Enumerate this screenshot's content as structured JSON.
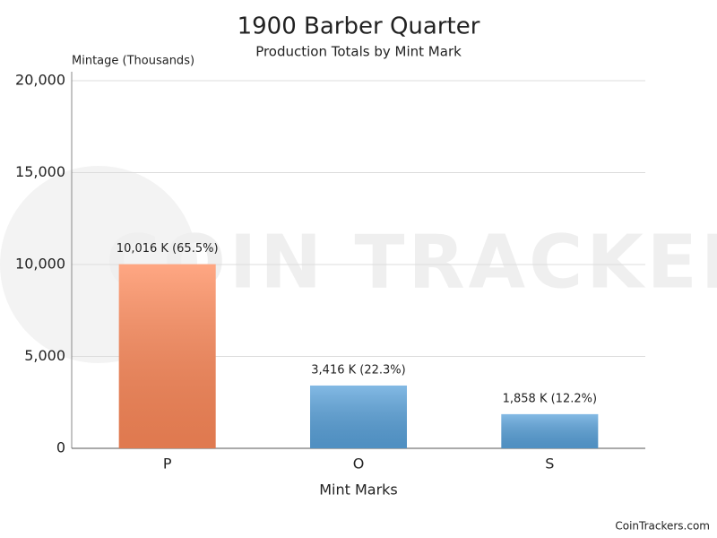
{
  "chart_data": {
    "type": "bar",
    "title": "1900 Barber Quarter",
    "subtitle": "Production Totals by Mint Mark",
    "y_axis_label": "Mintage (Thousands)",
    "x_axis_label": "Mint Marks",
    "watermark": "COIN TRACKERS",
    "credit": "CoinTrackers.com",
    "categories": [
      "P",
      "O",
      "S"
    ],
    "values": [
      10016,
      3416,
      1858
    ],
    "value_labels": [
      "10,016 K (65.5%)",
      "3,416 K (22.3%)",
      "1,858 K (12.2%)"
    ],
    "colors": [
      "#ff8a5a",
      "#5aa3dc",
      "#5aa3dc"
    ],
    "ylim": [
      0,
      20000
    ],
    "yticks": [
      0,
      {
        "value": 5000,
        "label": "5,000"
      },
      {
        "value": 10000,
        "label": "10,000"
      },
      {
        "value": 15000,
        "label": "15,000"
      },
      {
        "value": 20000,
        "label": "20,000"
      }
    ],
    "grid": true
  }
}
